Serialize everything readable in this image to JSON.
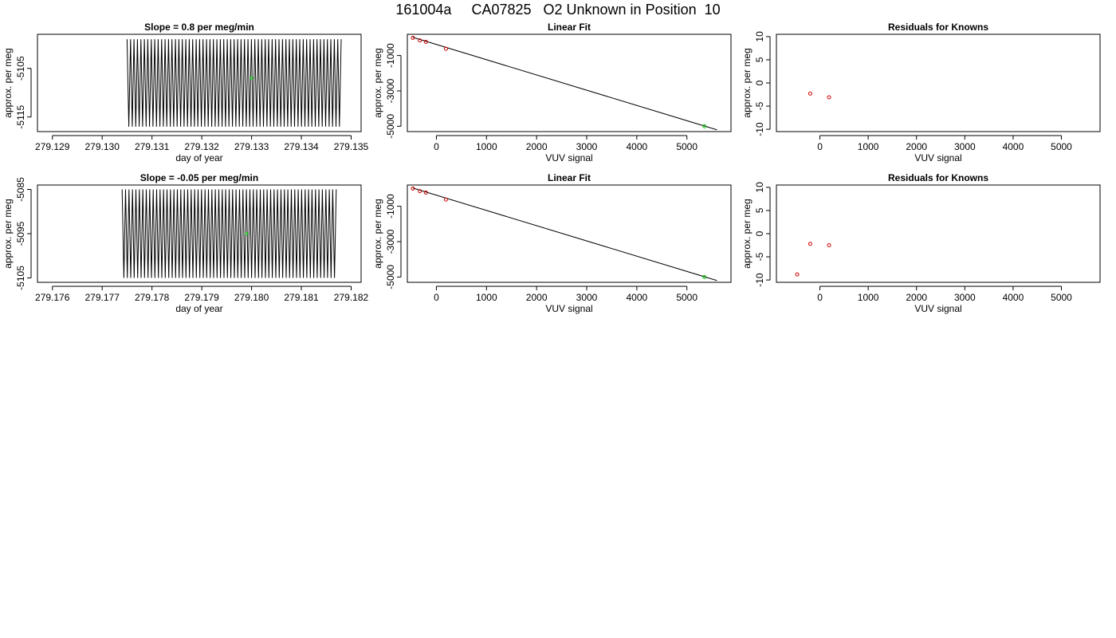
{
  "page_title": "161004a     CA07825   O2 Unknown in Position  10",
  "colors": {
    "axes": "#000000",
    "known_points": "#cc0000",
    "unknown_point": "#00cc00",
    "line": "#000000"
  },
  "chart_data": [
    {
      "id": "r1-trace",
      "type": "line",
      "title": "Slope =  0.8  per meg/min",
      "xlabel": "day of year",
      "ylabel": "approx. per meg",
      "xlim": [
        279.1287,
        279.1352
      ],
      "ylim": [
        -5118,
        -5098
      ],
      "xticks": [
        279.129,
        279.13,
        279.131,
        279.132,
        279.133,
        279.134,
        279.135
      ],
      "xtick_labels": [
        "279.129",
        "279.130",
        "279.131",
        "279.132",
        "279.133",
        "279.134",
        "279.135"
      ],
      "yticks": [
        -5105,
        -5115
      ],
      "ytick_labels": [
        "-5105",
        "-5115"
      ],
      "trace": {
        "x_start": 279.1305,
        "x_end": 279.1348,
        "cycles": 62,
        "y_low": -5117,
        "y_high": -5099
      },
      "marker": {
        "x": 279.133,
        "y": -5107
      }
    },
    {
      "id": "r1-fit",
      "type": "scatter",
      "title": "Linear Fit",
      "xlabel": "VUV signal",
      "ylabel": "approx. per meg",
      "xlim": [
        -580,
        5880
      ],
      "ylim": [
        -5300,
        200
      ],
      "xticks": [
        0,
        1000,
        2000,
        3000,
        4000,
        5000
      ],
      "xtick_labels": [
        "0",
        "1000",
        "2000",
        "3000",
        "4000",
        "5000"
      ],
      "yticks": [
        -1000,
        -3000,
        -5000
      ],
      "ytick_labels": [
        "-1000",
        "-3000",
        "-5000"
      ],
      "known_points": [
        {
          "x": -470,
          "y": 0
        },
        {
          "x": -330,
          "y": -150
        },
        {
          "x": -210,
          "y": -230
        },
        {
          "x": 190,
          "y": -620
        }
      ],
      "unknown_point": {
        "x": 5350,
        "y": -5000
      },
      "fit_line": [
        {
          "x": -470,
          "y": 30
        },
        {
          "x": 5600,
          "y": -5200
        }
      ]
    },
    {
      "id": "r1-resid",
      "type": "scatter",
      "title": "Residuals for Knowns",
      "xlabel": "VUV signal",
      "ylabel": "approx. per meg",
      "xlim": [
        -900,
        5800
      ],
      "ylim": [
        -10.5,
        10.5
      ],
      "xticks": [
        0,
        1000,
        2000,
        3000,
        4000,
        5000
      ],
      "xtick_labels": [
        "0",
        "1000",
        "2000",
        "3000",
        "4000",
        "5000"
      ],
      "yticks": [
        10,
        5,
        0,
        -5,
        -10
      ],
      "ytick_labels": [
        "10",
        "5",
        "0",
        "-5",
        "-10"
      ],
      "known_points": [
        {
          "x": -200,
          "y": -2.3
        },
        {
          "x": 190,
          "y": -3.1
        }
      ]
    },
    {
      "id": "r2-trace",
      "type": "line",
      "title": "Slope =  -0.05  per meg/min",
      "xlabel": "day of year",
      "ylabel": "approx. per meg",
      "xlim": [
        279.1757,
        279.1822
      ],
      "ylim": [
        -5106,
        -5084
      ],
      "xticks": [
        279.176,
        279.177,
        279.178,
        279.179,
        279.18,
        279.181,
        279.182
      ],
      "xtick_labels": [
        "279.176",
        "279.177",
        "279.178",
        "279.179",
        "279.180",
        "279.181",
        "279.182"
      ],
      "yticks": [
        -5085,
        -5095,
        -5105
      ],
      "ytick_labels": [
        "-5085",
        "-5095",
        "-5105"
      ],
      "trace": {
        "x_start": 279.1774,
        "x_end": 279.1817,
        "cycles": 62,
        "y_low": -5105,
        "y_high": -5085
      },
      "marker": {
        "x": 279.1799,
        "y": -5095
      }
    },
    {
      "id": "r2-fit",
      "type": "scatter",
      "title": "Linear Fit",
      "xlabel": "VUV signal",
      "ylabel": "approx. per meg",
      "xlim": [
        -580,
        5880
      ],
      "ylim": [
        -5300,
        200
      ],
      "xticks": [
        0,
        1000,
        2000,
        3000,
        4000,
        5000
      ],
      "xtick_labels": [
        "0",
        "1000",
        "2000",
        "3000",
        "4000",
        "5000"
      ],
      "yticks": [
        -1000,
        -3000,
        -5000
      ],
      "ytick_labels": [
        "-1000",
        "-3000",
        "-5000"
      ],
      "known_points": [
        {
          "x": -470,
          "y": 0
        },
        {
          "x": -330,
          "y": -150
        },
        {
          "x": -210,
          "y": -230
        },
        {
          "x": 190,
          "y": -620
        }
      ],
      "unknown_point": {
        "x": 5350,
        "y": -5000
      },
      "fit_line": [
        {
          "x": -470,
          "y": 30
        },
        {
          "x": 5600,
          "y": -5200
        }
      ]
    },
    {
      "id": "r2-resid",
      "type": "scatter",
      "title": "Residuals for Knowns",
      "xlabel": "VUV signal",
      "ylabel": "approx. per meg",
      "xlim": [
        -900,
        5800
      ],
      "ylim": [
        -10.5,
        10.5
      ],
      "xticks": [
        0,
        1000,
        2000,
        3000,
        4000,
        5000
      ],
      "xtick_labels": [
        "0",
        "1000",
        "2000",
        "3000",
        "4000",
        "5000"
      ],
      "yticks": [
        10,
        5,
        0,
        -5,
        -10
      ],
      "ytick_labels": [
        "10",
        "5",
        "0",
        "-5",
        "-10"
      ],
      "known_points": [
        {
          "x": -470,
          "y": -8.8
        },
        {
          "x": -200,
          "y": -2.2
        },
        {
          "x": 190,
          "y": -2.5
        }
      ]
    }
  ]
}
